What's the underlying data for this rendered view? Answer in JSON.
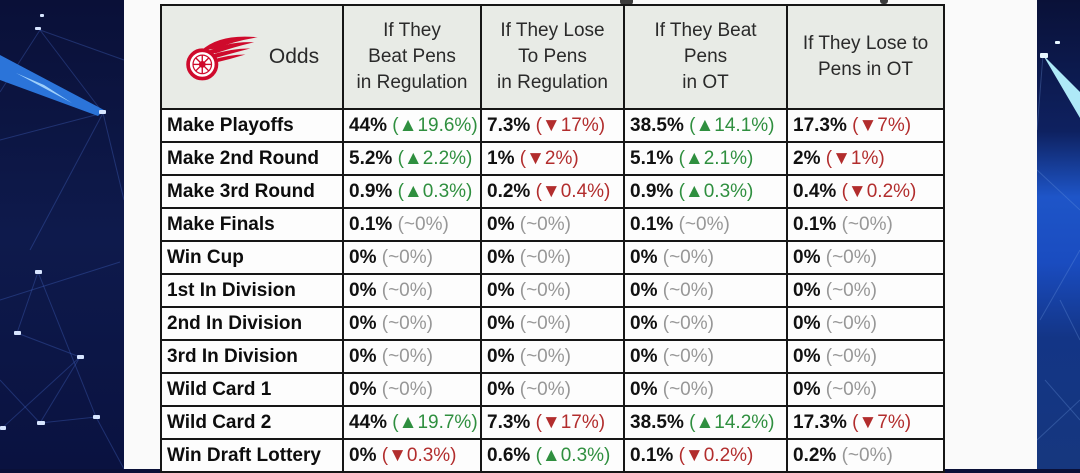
{
  "colors": {
    "up": "#2f8f3f",
    "down": "#b22d2d",
    "flat": "#979797",
    "header_bg": "#e8ebe6",
    "border": "#161616",
    "background_navy": "#0a1038",
    "background_blue_streak": "#2b74d9",
    "background_cyan_streak": "#aee9f7",
    "logo_red": "#cf0a2c"
  },
  "icons": {
    "up_arrow": "▲",
    "down_arrow": "▼",
    "team_logo": "detroit-red-wings-winged-wheel-icon"
  },
  "table": {
    "corner_label": "Odds",
    "columns": [
      "If They\nBeat Pens\nin Regulation",
      "If They Lose\nTo Pens\nin Regulation",
      "If They Beat\nPens\nin OT",
      "If They Lose to\nPens in OT"
    ],
    "rows": [
      {
        "label": "Make Playoffs",
        "cells": [
          {
            "v": "44%",
            "d": "up",
            "c": "19.6%"
          },
          {
            "v": "7.3%",
            "d": "down",
            "c": "17%"
          },
          {
            "v": "38.5%",
            "d": "up",
            "c": "14.1%"
          },
          {
            "v": "17.3%",
            "d": "down",
            "c": "7%"
          }
        ]
      },
      {
        "label": "Make 2nd Round",
        "cells": [
          {
            "v": "5.2%",
            "d": "up",
            "c": "2.2%"
          },
          {
            "v": "1%",
            "d": "down",
            "c": "2%"
          },
          {
            "v": "5.1%",
            "d": "up",
            "c": "2.1%"
          },
          {
            "v": "2%",
            "d": "down",
            "c": "1%"
          }
        ]
      },
      {
        "label": "Make 3rd Round",
        "cells": [
          {
            "v": "0.9%",
            "d": "up",
            "c": "0.3%"
          },
          {
            "v": "0.2%",
            "d": "down",
            "c": "0.4%"
          },
          {
            "v": "0.9%",
            "d": "up",
            "c": "0.3%"
          },
          {
            "v": "0.4%",
            "d": "down",
            "c": "0.2%"
          }
        ]
      },
      {
        "label": "Make Finals",
        "cells": [
          {
            "v": "0.1%",
            "d": "flat",
            "c": "~0%"
          },
          {
            "v": "0%",
            "d": "flat",
            "c": "~0%"
          },
          {
            "v": "0.1%",
            "d": "flat",
            "c": "~0%"
          },
          {
            "v": "0.1%",
            "d": "flat",
            "c": "~0%"
          }
        ]
      },
      {
        "label": "Win Cup",
        "cells": [
          {
            "v": "0%",
            "d": "flat",
            "c": "~0%"
          },
          {
            "v": "0%",
            "d": "flat",
            "c": "~0%"
          },
          {
            "v": "0%",
            "d": "flat",
            "c": "~0%"
          },
          {
            "v": "0%",
            "d": "flat",
            "c": "~0%"
          }
        ]
      },
      {
        "label": "1st In Division",
        "cells": [
          {
            "v": "0%",
            "d": "flat",
            "c": "~0%"
          },
          {
            "v": "0%",
            "d": "flat",
            "c": "~0%"
          },
          {
            "v": "0%",
            "d": "flat",
            "c": "~0%"
          },
          {
            "v": "0%",
            "d": "flat",
            "c": "~0%"
          }
        ]
      },
      {
        "label": "2nd In Division",
        "cells": [
          {
            "v": "0%",
            "d": "flat",
            "c": "~0%"
          },
          {
            "v": "0%",
            "d": "flat",
            "c": "~0%"
          },
          {
            "v": "0%",
            "d": "flat",
            "c": "~0%"
          },
          {
            "v": "0%",
            "d": "flat",
            "c": "~0%"
          }
        ]
      },
      {
        "label": "3rd In Division",
        "cells": [
          {
            "v": "0%",
            "d": "flat",
            "c": "~0%"
          },
          {
            "v": "0%",
            "d": "flat",
            "c": "~0%"
          },
          {
            "v": "0%",
            "d": "flat",
            "c": "~0%"
          },
          {
            "v": "0%",
            "d": "flat",
            "c": "~0%"
          }
        ]
      },
      {
        "label": "Wild Card 1",
        "cells": [
          {
            "v": "0%",
            "d": "flat",
            "c": "~0%"
          },
          {
            "v": "0%",
            "d": "flat",
            "c": "~0%"
          },
          {
            "v": "0%",
            "d": "flat",
            "c": "~0%"
          },
          {
            "v": "0%",
            "d": "flat",
            "c": "~0%"
          }
        ]
      },
      {
        "label": "Wild Card 2",
        "cells": [
          {
            "v": "44%",
            "d": "up",
            "c": "19.7%"
          },
          {
            "v": "7.3%",
            "d": "down",
            "c": "17%"
          },
          {
            "v": "38.5%",
            "d": "up",
            "c": "14.2%"
          },
          {
            "v": "17.3%",
            "d": "down",
            "c": "7%"
          }
        ]
      },
      {
        "label": "Win Draft Lottery",
        "cells": [
          {
            "v": "0%",
            "d": "down",
            "c": "0.3%"
          },
          {
            "v": "0.6%",
            "d": "up",
            "c": "0.3%"
          },
          {
            "v": "0.1%",
            "d": "down",
            "c": "0.2%"
          },
          {
            "v": "0.2%",
            "d": "flat",
            "c": "~0%"
          }
        ]
      }
    ]
  },
  "chart_data": {
    "type": "table",
    "columns": [
      "Odds",
      "If They Beat Pens in Regulation",
      "If They Lose To Pens in Regulation",
      "If They Beat Pens in OT",
      "If They Lose to Pens in OT"
    ],
    "rows": [
      [
        "Make Playoffs",
        "44% (▲19.6%)",
        "7.3% (▼17%)",
        "38.5% (▲14.1%)",
        "17.3% (▼7%)"
      ],
      [
        "Make 2nd Round",
        "5.2% (▲2.2%)",
        "1% (▼2%)",
        "5.1% (▲2.1%)",
        "2% (▼1%)"
      ],
      [
        "Make 3rd Round",
        "0.9% (▲0.3%)",
        "0.2% (▼0.4%)",
        "0.9% (▲0.3%)",
        "0.4% (▼0.2%)"
      ],
      [
        "Make Finals",
        "0.1% (~0%)",
        "0% (~0%)",
        "0.1% (~0%)",
        "0.1% (~0%)"
      ],
      [
        "Win Cup",
        "0% (~0%)",
        "0% (~0%)",
        "0% (~0%)",
        "0% (~0%)"
      ],
      [
        "1st In Division",
        "0% (~0%)",
        "0% (~0%)",
        "0% (~0%)",
        "0% (~0%)"
      ],
      [
        "2nd In Division",
        "0% (~0%)",
        "0% (~0%)",
        "0% (~0%)",
        "0% (~0%)"
      ],
      [
        "3rd In Division",
        "0% (~0%)",
        "0% (~0%)",
        "0% (~0%)",
        "0% (~0%)"
      ],
      [
        "Wild Card 1",
        "0% (~0%)",
        "0% (~0%)",
        "0% (~0%)",
        "0% (~0%)"
      ],
      [
        "Wild Card 2",
        "44% (▲19.7%)",
        "7.3% (▼17%)",
        "38.5% (▲14.2%)",
        "17.3% (▼7%)"
      ],
      [
        "Win Draft Lottery",
        "0% (▼0.3%)",
        "0.6% (▲0.3%)",
        "0.1% (▼0.2%)",
        "0.2% (~0%)"
      ]
    ]
  }
}
